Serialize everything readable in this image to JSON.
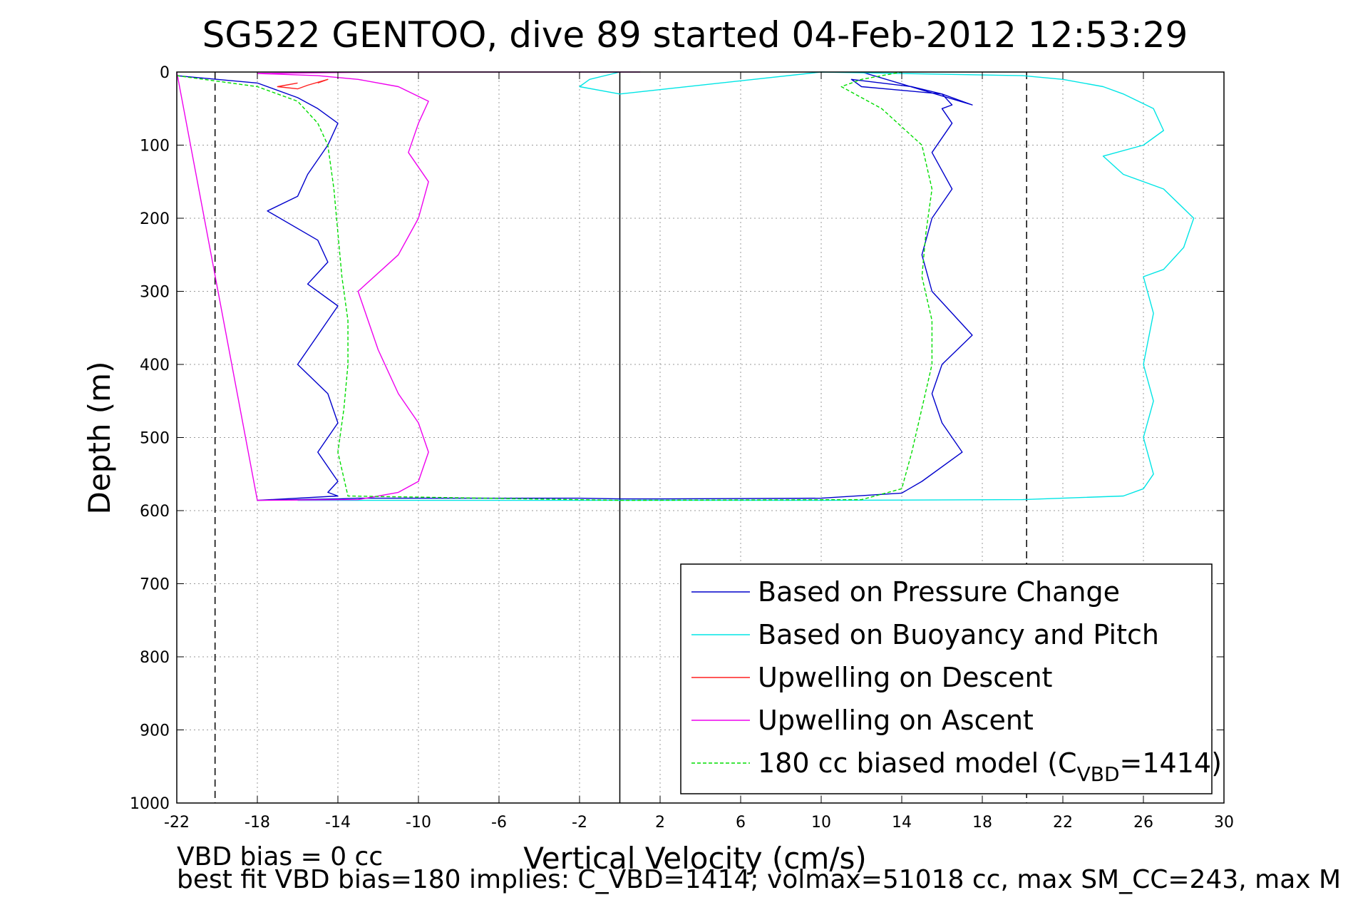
{
  "chart_data": {
    "type": "line",
    "title": "SG522 GENTOO, dive 89 started 04-Feb-2012 12:53:29",
    "xlabel": "Vertical Velocity (cm/s)",
    "ylabel": "Depth (m)",
    "xlim": [
      -22,
      30
    ],
    "ylim": [
      0,
      1000
    ],
    "y_reversed": true,
    "grid": true,
    "legend_position": "bottom-right",
    "xticks": [
      -22,
      -18,
      -14,
      -10,
      -6,
      -2,
      2,
      6,
      10,
      14,
      18,
      22,
      26,
      30
    ],
    "yticks": [
      0,
      100,
      200,
      300,
      400,
      500,
      600,
      700,
      800,
      900,
      1000
    ],
    "reference_lines": [
      {
        "x": -20.1,
        "style": "dashed",
        "color": "#000000"
      },
      {
        "x": 0,
        "style": "solid",
        "color": "#000000"
      },
      {
        "x": 20.2,
        "style": "dashed",
        "color": "#000000"
      }
    ],
    "series": [
      {
        "name": "Based on Pressure Change",
        "color": "#0000cc",
        "style": "solid",
        "x": [
          -22,
          -18,
          -16,
          -15,
          -14,
          -14.5,
          -15.5,
          -16,
          -17.5,
          -15,
          -14.5,
          -15.5,
          -14,
          -15,
          -16,
          -14.5,
          -14,
          -15,
          -14,
          -14.5,
          -14,
          -18,
          -14,
          -13,
          -12,
          -10,
          -2,
          0,
          2,
          10,
          14,
          15,
          17,
          16,
          15.5,
          16,
          17.5,
          15.5,
          15,
          15.5,
          16.5,
          15.5,
          16.5,
          16,
          16.5,
          16,
          12,
          11.5,
          13,
          14.5,
          16,
          17.5,
          12
        ],
        "y": [
          5,
          15,
          35,
          50,
          70,
          100,
          140,
          170,
          190,
          230,
          260,
          290,
          320,
          360,
          400,
          440,
          480,
          520,
          560,
          575,
          580,
          586,
          584,
          583,
          583,
          583,
          583,
          584,
          584,
          583,
          576,
          560,
          520,
          480,
          440,
          400,
          360,
          300,
          250,
          200,
          160,
          110,
          70,
          50,
          45,
          30,
          20,
          10,
          15,
          20,
          30,
          45,
          0
        ]
      },
      {
        "name": "Based on Buoyancy and Pitch",
        "color": "#00e5e5",
        "style": "solid",
        "x": [
          0,
          -1.5,
          -2,
          0,
          10,
          20,
          22,
          24,
          25,
          26.5,
          27,
          26,
          24,
          25,
          27,
          28.5,
          28,
          27,
          26,
          26.5,
          26,
          26.5,
          26,
          26.5,
          26,
          25,
          20,
          10,
          0,
          -10,
          -16
        ],
        "y": [
          0,
          10,
          20,
          30,
          0,
          5,
          10,
          20,
          30,
          50,
          80,
          100,
          115,
          140,
          160,
          200,
          240,
          270,
          280,
          330,
          400,
          450,
          500,
          550,
          570,
          580,
          585,
          586,
          586,
          586,
          586
        ]
      },
      {
        "name": "Upwelling on Descent",
        "color": "#ff2020",
        "style": "solid",
        "x": [
          -16,
          -17,
          -16,
          -15.5,
          -14.5,
          -15
        ],
        "y": [
          15,
          20,
          23,
          18,
          10,
          15
        ]
      },
      {
        "name": "Upwelling on Ascent",
        "color": "#ee00ee",
        "style": "solid",
        "x": [
          -22,
          -18,
          -13,
          -11,
          -10,
          -9.5,
          -10,
          -11,
          -12,
          -13,
          -11,
          -10,
          -9.5,
          -10.5,
          -10,
          -9.5,
          -11,
          -13,
          -15,
          -18,
          -12,
          -2,
          1,
          -1,
          -8,
          -9.5
        ],
        "y": [
          0,
          586,
          585,
          575,
          560,
          520,
          480,
          440,
          380,
          300,
          250,
          200,
          150,
          110,
          70,
          40,
          20,
          10,
          5,
          2,
          0,
          0,
          0,
          0,
          0,
          0
        ]
      },
      {
        "name": "180 cc biased model (C_VBD=1414)",
        "color": "#00dd00",
        "style": "dashed",
        "x": [
          -22,
          -18,
          -16,
          -15,
          -14.5,
          -14.2,
          -14,
          -13.8,
          -13.5,
          -13.5,
          -13.7,
          -14,
          -13.5,
          0,
          12,
          14,
          14.5,
          15,
          15.5,
          15.5,
          15,
          15.2,
          15.5,
          15,
          13,
          11,
          12,
          14
        ],
        "y": [
          5,
          20,
          40,
          70,
          100,
          160,
          220,
          280,
          340,
          400,
          460,
          520,
          580,
          586,
          585,
          570,
          520,
          460,
          400,
          340,
          280,
          220,
          160,
          100,
          50,
          20,
          10,
          0
        ]
      }
    ]
  },
  "footer": {
    "line1": "VBD bias = 0 cc",
    "line2": "best fit VBD bias=180 implies: C_VBD=1414; volmax=51018 cc, max SM_CC=243, max M"
  },
  "legend": {
    "entries": [
      {
        "label": "Based on Pressure Change",
        "color": "#0000cc",
        "dash": false
      },
      {
        "label": "Based on Buoyancy and Pitch",
        "color": "#00e5e5",
        "dash": false
      },
      {
        "label": "Upwelling on Descent",
        "color": "#ff2020",
        "dash": false
      },
      {
        "label": "Upwelling on Ascent",
        "color": "#ee00ee",
        "dash": false
      },
      {
        "label": "180 cc biased model (C",
        "subscript": "VBD",
        "suffix": "=1414)",
        "color": "#00dd00",
        "dash": true
      }
    ]
  }
}
